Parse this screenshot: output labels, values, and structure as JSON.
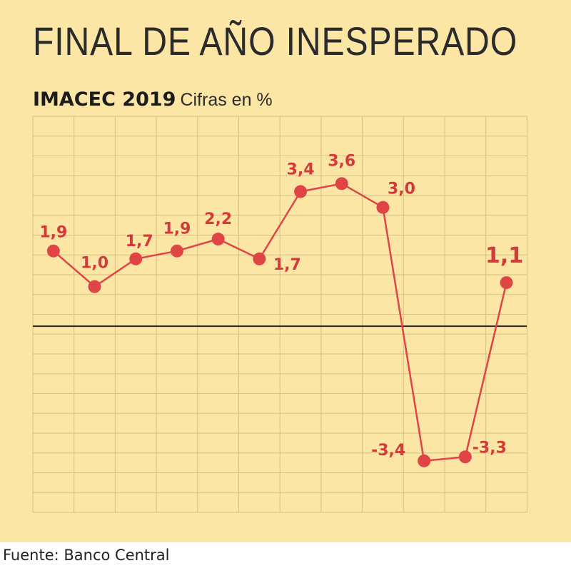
{
  "title": "FINAL DE AÑO INESPERADO",
  "subtitle": {
    "main": "IMACEC 2019",
    "unit": "Cifras en %"
  },
  "source": "Fuente: Banco Central",
  "chart_data": {
    "type": "line",
    "ylim": [
      -4.7,
      5.3
    ],
    "grid": true,
    "legend": "none",
    "points": [
      {
        "value": 1.9,
        "label": "1,9"
      },
      {
        "value": 1.0,
        "label": "1,0"
      },
      {
        "value": 1.7,
        "label": "1,7"
      },
      {
        "value": 1.9,
        "label": "1,9"
      },
      {
        "value": 2.2,
        "label": "2,2"
      },
      {
        "value": 1.7,
        "label": "1,7"
      },
      {
        "value": 3.4,
        "label": "3,4"
      },
      {
        "value": 3.6,
        "label": "3,6"
      },
      {
        "value": 3.0,
        "label": "3,0"
      },
      {
        "value": -3.4,
        "label": "-3,4"
      },
      {
        "value": -3.3,
        "label": "-3,3"
      },
      {
        "value": 1.1,
        "label": "1,1"
      }
    ]
  },
  "colors": {
    "background": "#fbe6a6",
    "grid": "#d6c081",
    "series": "#e04545",
    "label": "#d43a3a",
    "zero_line": "#2a2a2a",
    "title": "#2b2b2b"
  }
}
